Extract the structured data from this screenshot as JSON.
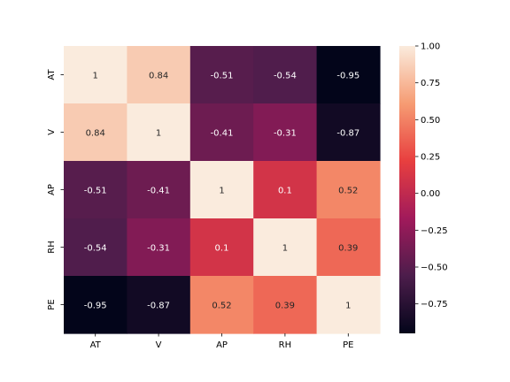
{
  "chart_data": {
    "type": "heatmap",
    "title": "",
    "xlabel": "",
    "ylabel": "",
    "x_categories": [
      "AT",
      "V",
      "AP",
      "RH",
      "PE"
    ],
    "y_categories": [
      "AT",
      "V",
      "AP",
      "RH",
      "PE"
    ],
    "values": [
      [
        1,
        0.84,
        -0.51,
        -0.54,
        -0.95
      ],
      [
        0.84,
        1,
        -0.41,
        -0.31,
        -0.87
      ],
      [
        -0.51,
        -0.41,
        1,
        0.1,
        0.52
      ],
      [
        -0.54,
        -0.31,
        0.1,
        1,
        0.39
      ],
      [
        -0.95,
        -0.87,
        0.52,
        0.39,
        1
      ]
    ],
    "annotations": [
      [
        "1",
        "0.84",
        "-0.51",
        "-0.54",
        "-0.95"
      ],
      [
        "0.84",
        "1",
        "-0.41",
        "-0.31",
        "-0.87"
      ],
      [
        "-0.51",
        "-0.41",
        "1",
        "0.1",
        "0.52"
      ],
      [
        "-0.54",
        "-0.31",
        "0.1",
        "1",
        "0.39"
      ],
      [
        "-0.95",
        "-0.87",
        "0.52",
        "0.39",
        "1"
      ]
    ],
    "colorbar": {
      "vmin": -0.95,
      "vmax": 1.0,
      "ticks": [
        1.0,
        0.75,
        0.5,
        0.25,
        0.0,
        -0.25,
        -0.5,
        -0.75
      ],
      "tick_labels": [
        "1.00",
        "0.75",
        "0.50",
        "0.25",
        "0.00",
        "−0.25",
        "−0.50",
        "−0.75"
      ]
    },
    "colormap": "rocket",
    "colormap_stops": [
      "#03051a",
      "#4c1d4b",
      "#a11a5b",
      "#e83f3f",
      "#f69c73",
      "#faebdd"
    ],
    "grid": false,
    "legend": "colorbar-right"
  }
}
